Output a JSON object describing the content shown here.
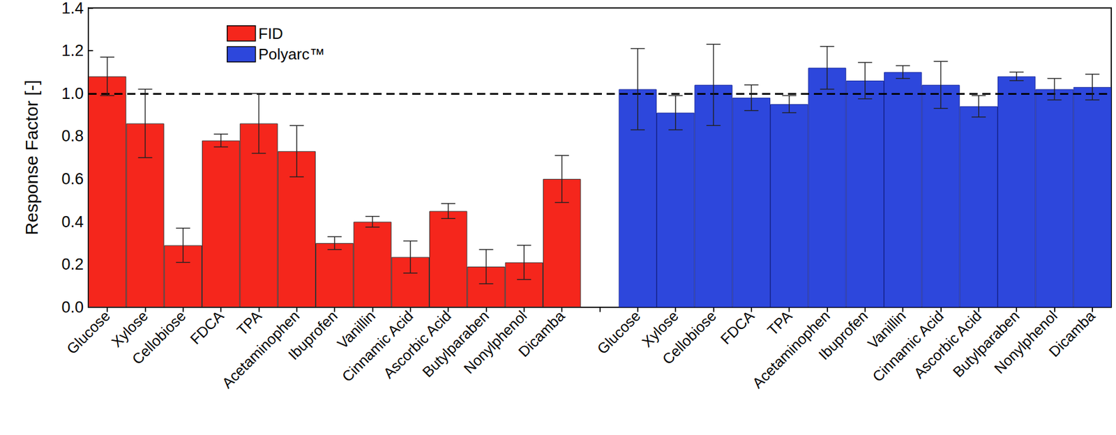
{
  "chart_data": {
    "type": "bar",
    "categories": [
      "Glucose",
      "Xylose",
      "Cellobiose",
      "FDCA",
      "TPA",
      "Acetaminophen",
      "Ibuprofen",
      "Vanillin",
      "Cinnamic Acid",
      "Ascorbic Acid",
      "Butylparaben",
      "Nonylphenol",
      "Dicamba",
      null,
      "Glucose",
      "Xylose",
      "Cellobiose",
      "FDCA",
      "TPA",
      "Acetaminophen",
      "Ibuprofen",
      "Vanillin",
      "Cinnamic Acid",
      "Ascorbic Acid",
      "Butylparaben",
      "Nonylphenol",
      "Dicamba"
    ],
    "series": [
      {
        "name": "FID",
        "color": "#f5261c",
        "values": [
          1.08,
          0.86,
          0.29,
          0.78,
          0.86,
          0.73,
          0.3,
          0.4,
          0.235,
          0.45,
          0.19,
          0.21,
          0.6,
          null,
          null,
          null,
          null,
          null,
          null,
          null,
          null,
          null,
          null,
          null,
          null,
          null,
          null
        ],
        "errors": [
          0.09,
          0.16,
          0.08,
          0.03,
          0.14,
          0.12,
          0.03,
          0.025,
          0.075,
          0.035,
          0.08,
          0.08,
          0.11,
          null,
          null,
          null,
          null,
          null,
          null,
          null,
          null,
          null,
          null,
          null,
          null,
          null,
          null
        ]
      },
      {
        "name": "Polyarc™",
        "color": "#2d47dc",
        "values": [
          null,
          null,
          null,
          null,
          null,
          null,
          null,
          null,
          null,
          null,
          null,
          null,
          null,
          null,
          1.02,
          0.91,
          1.04,
          0.98,
          0.95,
          1.12,
          1.06,
          1.1,
          1.04,
          0.94,
          1.08,
          1.02,
          1.03
        ],
        "errors": [
          null,
          null,
          null,
          null,
          null,
          null,
          null,
          null,
          null,
          null,
          null,
          null,
          null,
          null,
          0.19,
          0.08,
          0.19,
          0.06,
          0.04,
          0.1,
          0.085,
          0.03,
          0.11,
          0.05,
          0.02,
          0.05,
          0.06
        ]
      }
    ],
    "ylabel": "Response Factor [-]",
    "ylim": [
      0,
      1.4
    ],
    "yticks": [
      {
        "value": 0,
        "label": "0.0"
      },
      0.2,
      0.4,
      0.6,
      0.8,
      {
        "value": 1,
        "label": "1.0"
      },
      1.2,
      1.4
    ],
    "reference_line": 1.0,
    "grid": false,
    "legend": "upper left"
  }
}
